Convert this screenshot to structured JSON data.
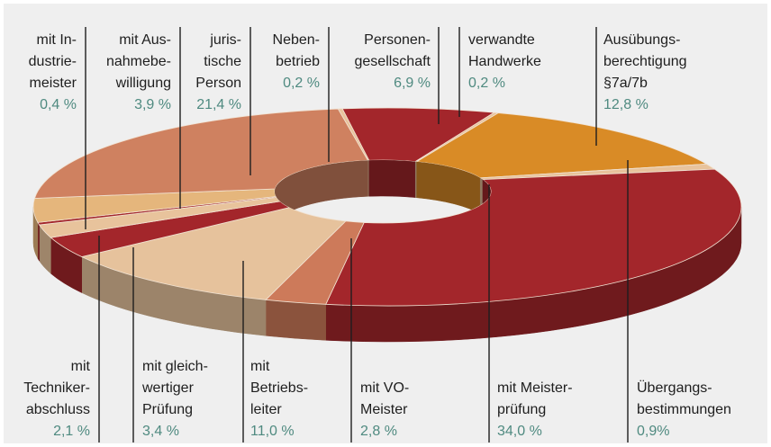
{
  "chart_data": {
    "type": "donut3d",
    "categories": [
      "Neben-\nbetrieb",
      "Personen-\ngesellschaft",
      "verwandte\nHandwerke",
      "Ausübungs-\nberechtigung\n§7a/7b",
      "Übergangs-\nbestimmungen",
      "mit Meister-\nprüfung",
      "mit VO-\nMeister",
      "mit\nBetriebs-\nleiter",
      "mit gleich-\nwertiger\nPrüfung",
      "mit\nTechniker-\nabschluss",
      "mit In-\ndustrie-\nmeister",
      "mit Aus-\nnahmebe-\nwilligung",
      "juris-\ntische\nPerson"
    ],
    "values": [
      0.2,
      6.9,
      0.2,
      12.8,
      0.9,
      34.0,
      2.8,
      11.0,
      3.4,
      2.1,
      0.4,
      3.9,
      21.4
    ],
    "value_labels": [
      "0,2 %",
      "6,9 %",
      "0,2 %",
      "12,8 %",
      "0,9%",
      "34,0 %",
      "2,8 %",
      "11,0 %",
      "3,4 %",
      "2,1 %",
      "0,4 %",
      "3,9 %",
      "21,4 %"
    ],
    "colors": [
      "#e8c39c",
      "#a3262b",
      "#e8c39c",
      "#d98b26",
      "#e8c39c",
      "#a3262b",
      "#cd7a5a",
      "#e6c29c",
      "#a3262b",
      "#e8c39c",
      "#a3262b",
      "#e5b67c",
      "#cf8160"
    ]
  }
}
